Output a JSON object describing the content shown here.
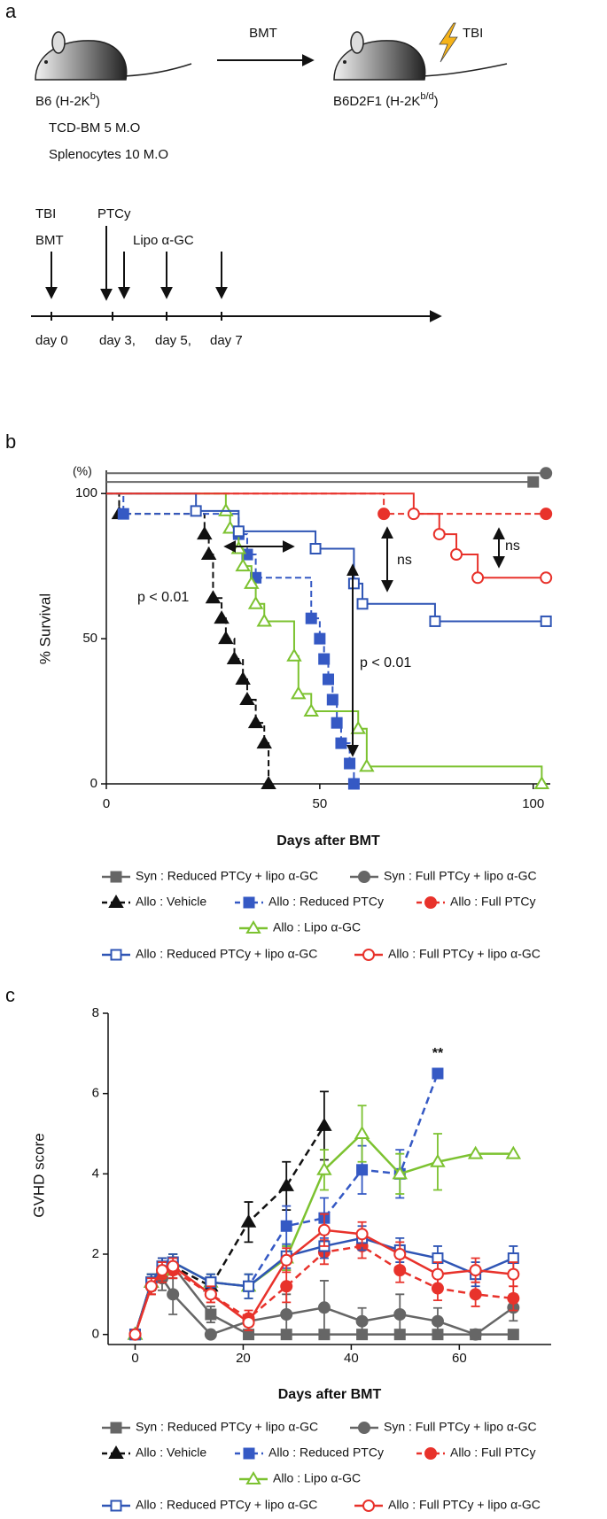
{
  "panel_a": {
    "label": "a",
    "transfer": "BMT",
    "irradiation": "TBI",
    "donor": [
      "B6 (H-2K",
      "b",
      ")"
    ],
    "recipient": [
      "B6D2F1 (H-2K",
      "b/d",
      ")"
    ],
    "graft": [
      "TCD-BM 5 M.O",
      "Splenocytes 10 M.O"
    ],
    "timeline": {
      "events": [
        "TBI",
        "BMT",
        "PTCy",
        "Lipo α-GC"
      ],
      "days": [
        "day 0",
        "day 3,",
        "day 5,",
        "day 7"
      ]
    }
  },
  "chart_data": [
    {
      "type": "step",
      "panel_label": "b",
      "y_unit": "(%)",
      "y_label": "% Survival",
      "x_label": "Days after BMT",
      "xlim": [
        0,
        104
      ],
      "xticks": [
        0,
        50,
        100
      ],
      "ylim": [
        0,
        108
      ],
      "yticks": [
        0,
        50,
        100
      ],
      "annotations": [
        "p < 0.01",
        "ns",
        "p < 0.01",
        "ns"
      ],
      "series": [
        {
          "name": "Syn : Reduced PTCy + lipo α-GC",
          "color": "#666666",
          "marker": "square",
          "filled": true,
          "dashed": false,
          "x": [
            0,
            100
          ],
          "values": [
            104,
            104
          ]
        },
        {
          "name": "Syn : Full PTCy + lipo α-GC",
          "color": "#666666",
          "marker": "circle",
          "filled": true,
          "dashed": false,
          "x": [
            0,
            103
          ],
          "values": [
            107,
            107
          ]
        },
        {
          "name": "Allo : Vehicle",
          "color": "#111111",
          "marker": "triangle",
          "filled": true,
          "dashed": true,
          "x": [
            0,
            3,
            23,
            24,
            25,
            27,
            28,
            30,
            32,
            33,
            35,
            37,
            38
          ],
          "values": [
            100,
            93,
            86,
            79,
            64,
            57,
            50,
            43,
            36,
            29,
            21,
            14,
            0
          ]
        },
        {
          "name": "Allo : Reduced PTCy",
          "color": "#3559c4",
          "marker": "square",
          "filled": true,
          "dashed": true,
          "x": [
            0,
            4,
            31,
            33,
            35,
            48,
            50,
            51,
            52,
            53,
            54,
            55,
            57,
            58
          ],
          "values": [
            100,
            93,
            86,
            79,
            71,
            57,
            50,
            43,
            36,
            29,
            21,
            14,
            7,
            0
          ]
        },
        {
          "name": "Allo : Full PTCy",
          "color": "#e8322b",
          "marker": "circle",
          "filled": true,
          "dashed": true,
          "x": [
            0,
            65,
            103
          ],
          "values": [
            100,
            93,
            93
          ]
        },
        {
          "name": "Allo : Lipo α-GC",
          "color": "#7cc230",
          "marker": "triangle",
          "filled": false,
          "dashed": false,
          "x": [
            0,
            28,
            29,
            31,
            32,
            34,
            35,
            37,
            44,
            45,
            48,
            59,
            61,
            102
          ],
          "values": [
            100,
            94,
            88,
            81,
            75,
            69,
            62,
            56,
            44,
            31,
            25,
            19,
            6,
            0
          ]
        },
        {
          "name": "Allo : Reduced PTCy + lipo α-GC",
          "color": "#2f55b5",
          "marker": "square",
          "filled": false,
          "dashed": false,
          "x": [
            0,
            21,
            31,
            49,
            58,
            60,
            77,
            103
          ],
          "values": [
            100,
            94,
            87,
            81,
            69,
            62,
            56,
            56
          ]
        },
        {
          "name": "Allo : Full PTCy + lipo α-GC",
          "color": "#e8322b",
          "marker": "circle",
          "filled": false,
          "dashed": false,
          "x": [
            0,
            72,
            78,
            82,
            87,
            103
          ],
          "values": [
            100,
            93,
            86,
            79,
            71,
            71
          ]
        }
      ]
    },
    {
      "type": "line",
      "panel_label": "c",
      "y_label": "GVHD score",
      "x_label": "Days after BMT",
      "xlim": [
        -5,
        77
      ],
      "xticks": [
        0,
        20,
        40,
        60
      ],
      "ylim": [
        -0.25,
        8
      ],
      "yticks": [
        0,
        2,
        4,
        6,
        8
      ],
      "x": [
        0,
        3,
        5,
        7,
        14,
        21,
        28,
        35,
        42,
        49,
        56,
        63,
        70
      ],
      "annotations": [
        "**"
      ],
      "series": [
        {
          "name": "Syn : Reduced PTCy + lipo α-GC",
          "color": "#666666",
          "marker": "square",
          "filled": true,
          "dashed": false,
          "values": [
            0,
            1.3,
            1.6,
            1.7,
            0.5,
            0,
            0,
            0,
            0,
            0,
            0,
            0,
            0
          ],
          "errors": [
            0,
            0.2,
            0.3,
            0.2,
            0.2,
            0,
            0,
            0,
            0,
            0,
            0,
            0,
            0
          ]
        },
        {
          "name": "Syn : Full PTCy + lipo α-GC",
          "color": "#666666",
          "marker": "circle",
          "filled": true,
          "dashed": false,
          "values": [
            0,
            1.2,
            1.4,
            1.0,
            0,
            0.33,
            0.5,
            0.67,
            0.33,
            0.5,
            0.33,
            0,
            0.67
          ],
          "errors": [
            0,
            0.2,
            0.3,
            0.5,
            0,
            0,
            0.5,
            0.67,
            0.33,
            0.5,
            0.33,
            0,
            0.33
          ]
        },
        {
          "name": "Allo : Vehicle",
          "color": "#111111",
          "marker": "triangle",
          "filled": true,
          "dashed": true,
          "values": [
            0,
            1.3,
            1.6,
            1.7,
            1.2,
            2.8,
            3.7,
            5.2,
            null,
            null,
            null,
            null,
            null
          ],
          "errors": [
            0,
            0.2,
            0.3,
            0.3,
            0.2,
            0.5,
            0.6,
            0.85,
            null,
            null,
            null,
            null,
            null
          ]
        },
        {
          "name": "Allo : Reduced PTCy",
          "color": "#3559c4",
          "marker": "square",
          "filled": true,
          "dashed": true,
          "values": [
            0,
            1.3,
            1.6,
            1.8,
            1.3,
            1.2,
            2.7,
            2.9,
            4.1,
            4.0,
            6.5,
            null,
            null
          ],
          "errors": [
            0,
            0.2,
            0.2,
            0.2,
            0.2,
            0.3,
            0.5,
            0.5,
            0.6,
            0.6,
            0,
            null,
            null
          ]
        },
        {
          "name": "Allo : Full PTCy",
          "color": "#e8322b",
          "marker": "circle",
          "filled": true,
          "dashed": true,
          "values": [
            0,
            1.2,
            1.5,
            1.6,
            1.0,
            0.4,
            1.2,
            2.05,
            2.2,
            1.6,
            1.15,
            1.0,
            0.9
          ],
          "errors": [
            0,
            0.2,
            0.2,
            0.2,
            0.2,
            0.2,
            0.4,
            0.3,
            0.3,
            0.3,
            0.3,
            0.3,
            0.3
          ]
        },
        {
          "name": "Allo : Lipo α-GC",
          "color": "#7cc230",
          "marker": "triangle",
          "filled": false,
          "dashed": false,
          "values": [
            0,
            1.3,
            1.6,
            1.8,
            1.3,
            1.2,
            1.9,
            4.1,
            5.0,
            4.0,
            4.3,
            4.5,
            4.5
          ],
          "errors": [
            0,
            0.2,
            0.2,
            0.2,
            0.2,
            0.3,
            0.3,
            0.5,
            0.7,
            0.5,
            0.7,
            0,
            0
          ]
        },
        {
          "name": "Allo : Reduced PTCy + lipo α-GC",
          "color": "#2f55b5",
          "marker": "square",
          "filled": false,
          "dashed": false,
          "values": [
            0,
            1.3,
            1.7,
            1.8,
            1.3,
            1.2,
            1.95,
            2.2,
            2.4,
            2.1,
            1.9,
            1.5,
            1.9
          ],
          "errors": [
            0,
            0.2,
            0.2,
            0.2,
            0.2,
            0.3,
            0.3,
            0.3,
            0.3,
            0.3,
            0.3,
            0.3,
            0.3
          ]
        },
        {
          "name": "Allo : Full PTCy + lipo α-GC",
          "color": "#e8322b",
          "marker": "circle",
          "filled": false,
          "dashed": false,
          "values": [
            0,
            1.2,
            1.6,
            1.7,
            1.0,
            0.3,
            1.85,
            2.6,
            2.5,
            2.0,
            1.5,
            1.6,
            1.5
          ],
          "errors": [
            0,
            0.2,
            0.2,
            0.2,
            0.2,
            0.2,
            0.3,
            0.4,
            0.3,
            0.3,
            0.3,
            0.3,
            0.3
          ]
        }
      ]
    }
  ]
}
